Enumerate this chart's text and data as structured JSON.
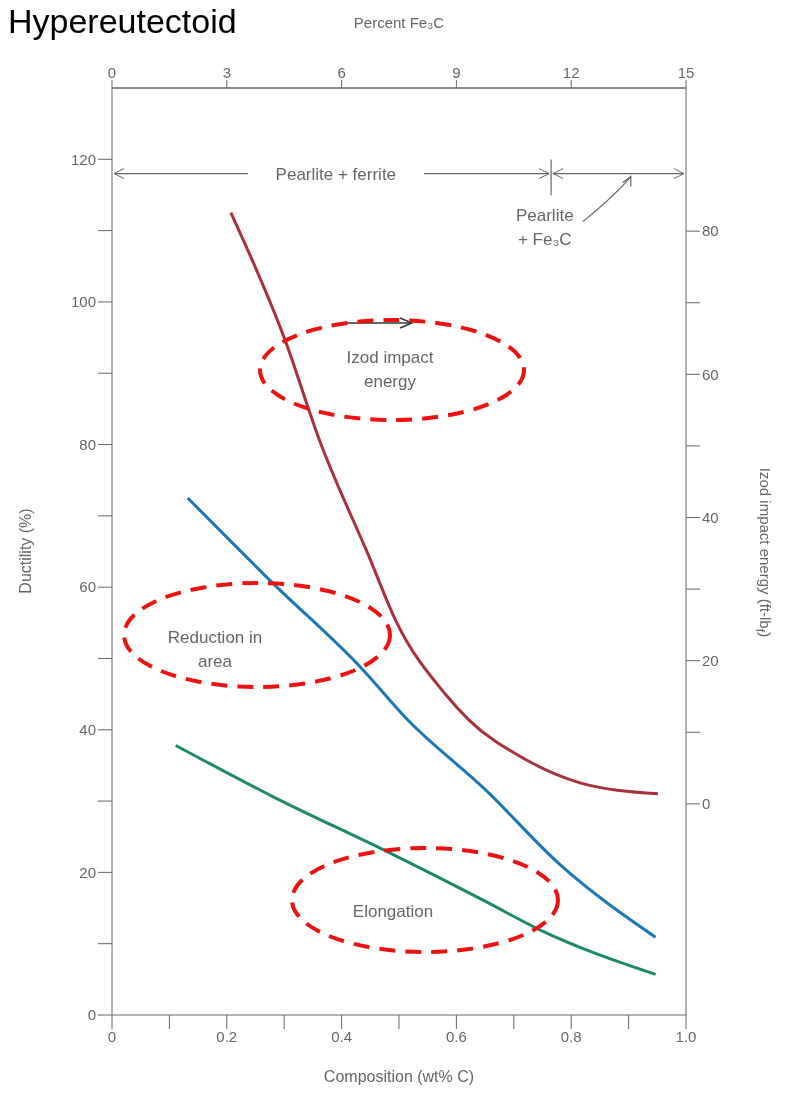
{
  "chart_data": {
    "type": "line",
    "title": "Hypereutectoid",
    "xlabel": "Composition (wt% C)",
    "ylabel": "Ductility (%)",
    "y2label": "Izod impact energy (ft-lb$_{f}$)",
    "x2label": "Percent Fe₃C",
    "xlim": [
      0,
      1
    ],
    "xticks": [
      0,
      {
        "value": 0.1,
        "label": null
      },
      0.2,
      {
        "value": 0.3,
        "label": null
      },
      0.4,
      {
        "value": 0.5,
        "label": null
      },
      0.6,
      {
        "value": 0.7,
        "label": null
      },
      0.8,
      {
        "value": 0.9,
        "label": null
      },
      {
        "value": 1,
        "label": "1.0"
      }
    ],
    "x2lim": [
      0,
      15
    ],
    "x2ticks": [
      0,
      3,
      6,
      9,
      12,
      15
    ],
    "ylim": [
      0,
      130
    ],
    "yticks": [
      0,
      {
        "value": 10,
        "label": null
      },
      20,
      {
        "value": 30,
        "label": null
      },
      40,
      {
        "value": 50,
        "label": null
      },
      60,
      {
        "value": 70,
        "label": null
      },
      80,
      {
        "value": 90,
        "label": null
      },
      100,
      {
        "value": 110,
        "label": null
      },
      120
    ],
    "y2lim": [
      -29.5,
      100
    ],
    "y2ticks": [
      0,
      {
        "value": 10,
        "label": null
      },
      20,
      {
        "value": 30,
        "label": null
      },
      40,
      {
        "value": 50,
        "label": null
      },
      60,
      {
        "value": 70,
        "label": null
      },
      80
    ],
    "marker": "none",
    "line_style": "solid",
    "series": [
      {
        "name": "Izod impact energy",
        "color": "#a8323a",
        "axis": "y2",
        "x": [
          0.207,
          0.301,
          0.361,
          0.448,
          0.495,
          0.582,
          0.622,
          0.716,
          0.817,
          0.951
        ],
        "values": [
          82.6,
          64.9,
          50.9,
          34.5,
          25.5,
          15.2,
          11.7,
          6.4,
          2.9,
          1.4
        ]
      },
      {
        "name": "Reduction in area",
        "color": "#1a78b8",
        "x": [
          0.132,
          0.281,
          0.435,
          0.515,
          0.649,
          0.783,
          0.947
        ],
        "values": [
          72.5,
          60.5,
          48.6,
          41.4,
          31.7,
          20.9,
          10.9
        ]
      },
      {
        "name": "Elongation",
        "color": "#1a8a6a",
        "x": [
          0.111,
          0.281,
          0.482,
          0.649,
          0.749,
          0.947
        ],
        "values": [
          37.8,
          30.6,
          22.8,
          16.0,
          11.8,
          5.7
        ]
      }
    ],
    "annotations": [
      "Pearlite + ferrite",
      "Pearlite + Fe₃C"
    ]
  }
}
